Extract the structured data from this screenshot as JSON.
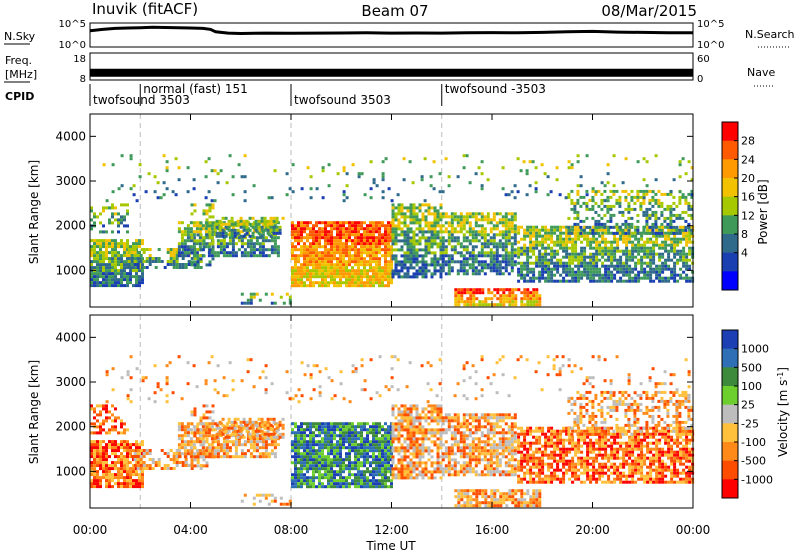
{
  "header": {
    "station": "Inuvik (fitACF)",
    "beam": "Beam 07",
    "date": "08/Mar/2015"
  },
  "chart_data": [
    {
      "type": "line",
      "panel": "noise",
      "left_label": "N.Sky",
      "right_label": "N.Search",
      "left_ticks": [
        "10^5",
        "10^0"
      ],
      "right_ticks": [
        "10^5",
        "10^0"
      ],
      "x_range_hours": [
        0,
        24
      ],
      "series": [
        {
          "name": "N.Sky",
          "x": [
            0.0,
            0.5,
            1.0,
            1.5,
            2.0,
            2.5,
            3.0,
            3.5,
            4.0,
            4.5,
            4.8,
            5.0,
            5.5,
            6.0,
            7.0,
            8.0,
            9.0,
            10.0,
            11.0,
            12.0,
            13.0,
            14.0,
            15.0,
            16.0,
            17.0,
            18.0,
            19.0,
            20.0,
            21.0,
            22.0,
            23.0,
            24.0
          ],
          "y": [
            3.9,
            4.3,
            4.6,
            4.7,
            4.8,
            4.9,
            4.85,
            4.8,
            4.7,
            4.6,
            4.3,
            3.6,
            3.2,
            3.1,
            3.2,
            3.15,
            3.2,
            3.25,
            3.3,
            3.2,
            3.25,
            3.2,
            3.3,
            3.35,
            3.3,
            3.4,
            3.6,
            3.7,
            3.5,
            3.4,
            3.3,
            3.3
          ]
        }
      ]
    },
    {
      "type": "line",
      "panel": "frequency",
      "left_label": "Freq.",
      "left_unit": "[MHz]",
      "right_label": "Nave",
      "left_ticks": [
        "18",
        "8"
      ],
      "right_ticks": [
        "60",
        "0"
      ],
      "series": [
        {
          "name": "Freq.",
          "x": [
            0,
            24
          ],
          "y": [
            10.5,
            10.5
          ]
        }
      ]
    },
    {
      "type": "table",
      "panel": "cpid",
      "label": "CPID",
      "segments": [
        {
          "start": 0.0,
          "end": 2.0,
          "name": "twofsound 3503"
        },
        {
          "start": 2.0,
          "end": 8.0,
          "name": "normal (fast) 151"
        },
        {
          "start": 8.0,
          "end": 14.0,
          "name": "twofsound 3503"
        },
        {
          "start": 14.0,
          "end": 24.0,
          "name": "twofsound -3503"
        }
      ]
    },
    {
      "type": "heatmap",
      "panel": "power",
      "ylabel": "Slant Range [km]",
      "ylim": [
        180,
        4500
      ],
      "y_ticks": [
        "1000",
        "2000",
        "3000",
        "4000"
      ],
      "colorbar": {
        "label": "Power [dB]",
        "ticks": [
          "28",
          "24",
          "20",
          "16",
          "12",
          "8",
          "4"
        ],
        "colors": [
          "#ff0000",
          "#ff5a00",
          "#ff9a00",
          "#f2c200",
          "#a6c800",
          "#3f9a5a",
          "#2f6a8a",
          "#1a3fb0",
          "#0000ff"
        ]
      }
    },
    {
      "type": "heatmap",
      "panel": "velocity",
      "ylabel": "Slant Range [km]",
      "ylim": [
        180,
        4500
      ],
      "y_ticks": [
        "1000",
        "2000",
        "3000",
        "4000"
      ],
      "colorbar": {
        "label": "Velocity [m s",
        "label_sup": "-1",
        "ticks": [
          "1000",
          "500",
          "100",
          "25",
          "-25",
          "-100",
          "-500",
          "-1000"
        ],
        "colors": [
          "#1c3fb3",
          "#2f6fb6",
          "#3d8a3d",
          "#6ccf2e",
          "#bdbdbd",
          "#ffc13b",
          "#ff8a1a",
          "#ff4d00",
          "#ff0000"
        ]
      },
      "xlabel": "Time UT",
      "x_ticks": [
        "00:00",
        "04:00",
        "08:00",
        "12:00",
        "16:00",
        "20:00",
        "00:00"
      ]
    }
  ]
}
